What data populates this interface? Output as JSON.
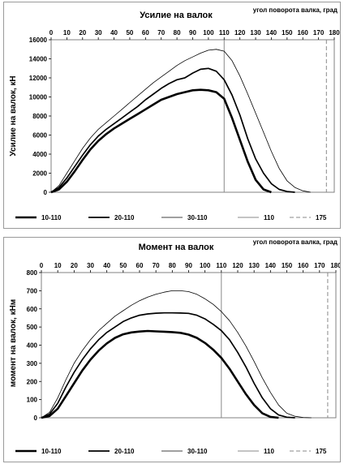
{
  "chart_data": [
    {
      "type": "line",
      "title": "Усилие на валок",
      "top_axis_label": "угол поворота валка, град",
      "ylabel": "Усилие на валок, кН",
      "xlim": [
        0,
        180
      ],
      "ylim": [
        0,
        16000
      ],
      "xticks": [
        "0",
        "10",
        "20",
        "30",
        "40",
        "50",
        "60",
        "70",
        "80",
        "90",
        "100",
        "110",
        "120",
        "130",
        "140",
        "150",
        "160",
        "170",
        "180"
      ],
      "yticks": [
        "0",
        "2000",
        "4000",
        "6000",
        "8000",
        "10000",
        "12000",
        "14000",
        "16000"
      ],
      "vlines": [
        {
          "name": "110",
          "x": 110,
          "style": "solid"
        },
        {
          "name": "175",
          "x": 175,
          "style": "dashed"
        }
      ],
      "legend_position": "bottom",
      "series": [
        {
          "name": "10-110",
          "weight": "thick",
          "x": [
            0,
            5,
            10,
            15,
            20,
            25,
            30,
            35,
            40,
            45,
            50,
            55,
            60,
            65,
            70,
            75,
            80,
            85,
            90,
            95,
            100,
            105,
            110,
            115,
            120,
            125,
            130,
            135,
            140
          ],
          "y": [
            0,
            300,
            1100,
            2200,
            3400,
            4500,
            5400,
            6100,
            6700,
            7200,
            7700,
            8200,
            8700,
            9200,
            9700,
            10000,
            10300,
            10500,
            10700,
            10750,
            10700,
            10500,
            9800,
            7800,
            5500,
            3200,
            1300,
            300,
            0
          ]
        },
        {
          "name": "20-110",
          "weight": "medium",
          "x": [
            0,
            5,
            10,
            15,
            20,
            25,
            30,
            35,
            40,
            45,
            50,
            55,
            60,
            65,
            70,
            75,
            80,
            85,
            90,
            95,
            100,
            105,
            110,
            115,
            120,
            125,
            130,
            135,
            140,
            145,
            150,
            155
          ],
          "y": [
            0,
            500,
            1500,
            2700,
            3900,
            5000,
            5900,
            6600,
            7200,
            7800,
            8400,
            9000,
            9700,
            10300,
            10900,
            11400,
            11800,
            12000,
            12500,
            12900,
            13000,
            12700,
            11800,
            10200,
            8100,
            5600,
            3500,
            2000,
            900,
            300,
            80,
            0
          ]
        },
        {
          "name": "30-110",
          "weight": "thin",
          "x": [
            0,
            5,
            10,
            15,
            20,
            25,
            30,
            35,
            40,
            45,
            50,
            55,
            60,
            65,
            70,
            75,
            80,
            85,
            90,
            95,
            100,
            105,
            110,
            115,
            120,
            125,
            130,
            135,
            140,
            145,
            150,
            155,
            160,
            165
          ],
          "y": [
            0,
            700,
            2000,
            3300,
            4600,
            5700,
            6600,
            7300,
            8000,
            8700,
            9400,
            10100,
            10800,
            11500,
            12100,
            12700,
            13300,
            13800,
            14200,
            14600,
            14900,
            15000,
            14800,
            13800,
            12200,
            10300,
            8300,
            6300,
            4300,
            2500,
            1200,
            500,
            150,
            0
          ]
        }
      ]
    },
    {
      "type": "line",
      "title": "Момент на валок",
      "top_axis_label": "угол поворота валка, град",
      "ylabel": "момент на валок, кНм",
      "xlim": [
        0,
        180
      ],
      "ylim": [
        0,
        800
      ],
      "xticks": [
        "0",
        "10",
        "20",
        "30",
        "40",
        "50",
        "60",
        "70",
        "80",
        "90",
        "100",
        "110",
        "120",
        "130",
        "140",
        "150",
        "160",
        "170",
        "180"
      ],
      "yticks": [
        "0",
        "100",
        "200",
        "300",
        "400",
        "500",
        "600",
        "700",
        "800"
      ],
      "vlines": [
        {
          "name": "110",
          "x": 110,
          "style": "solid"
        },
        {
          "name": "175",
          "x": 175,
          "style": "dashed"
        }
      ],
      "legend_position": "bottom",
      "series": [
        {
          "name": "10-110",
          "weight": "thick",
          "x": [
            0,
            5,
            10,
            15,
            20,
            25,
            30,
            35,
            40,
            45,
            50,
            55,
            60,
            65,
            70,
            75,
            80,
            85,
            90,
            95,
            100,
            105,
            110,
            115,
            120,
            125,
            130,
            135,
            140,
            145
          ],
          "y": [
            0,
            10,
            50,
            120,
            190,
            260,
            320,
            370,
            410,
            440,
            460,
            470,
            475,
            478,
            476,
            474,
            472,
            468,
            458,
            440,
            412,
            375,
            330,
            270,
            200,
            130,
            70,
            25,
            5,
            0
          ]
        },
        {
          "name": "20-110",
          "weight": "medium",
          "x": [
            0,
            5,
            10,
            15,
            20,
            25,
            30,
            35,
            40,
            45,
            50,
            55,
            60,
            65,
            70,
            75,
            80,
            85,
            90,
            95,
            100,
            105,
            110,
            115,
            120,
            125,
            130,
            135,
            140,
            145,
            150,
            155
          ],
          "y": [
            0,
            20,
            80,
            170,
            250,
            320,
            380,
            430,
            470,
            500,
            530,
            550,
            565,
            572,
            576,
            578,
            578,
            577,
            575,
            565,
            545,
            515,
            480,
            430,
            360,
            280,
            190,
            110,
            50,
            15,
            3,
            0
          ]
        },
        {
          "name": "30-110",
          "weight": "thin",
          "x": [
            0,
            5,
            10,
            15,
            20,
            25,
            30,
            35,
            40,
            45,
            50,
            55,
            60,
            65,
            70,
            75,
            80,
            85,
            90,
            95,
            100,
            105,
            110,
            115,
            120,
            125,
            130,
            135,
            140,
            145,
            150,
            155,
            160,
            165
          ],
          "y": [
            0,
            30,
            110,
            210,
            300,
            370,
            430,
            480,
            520,
            560,
            590,
            620,
            645,
            665,
            680,
            692,
            700,
            700,
            695,
            680,
            655,
            625,
            585,
            535,
            470,
            395,
            310,
            220,
            140,
            70,
            25,
            8,
            2,
            0
          ]
        }
      ]
    }
  ]
}
